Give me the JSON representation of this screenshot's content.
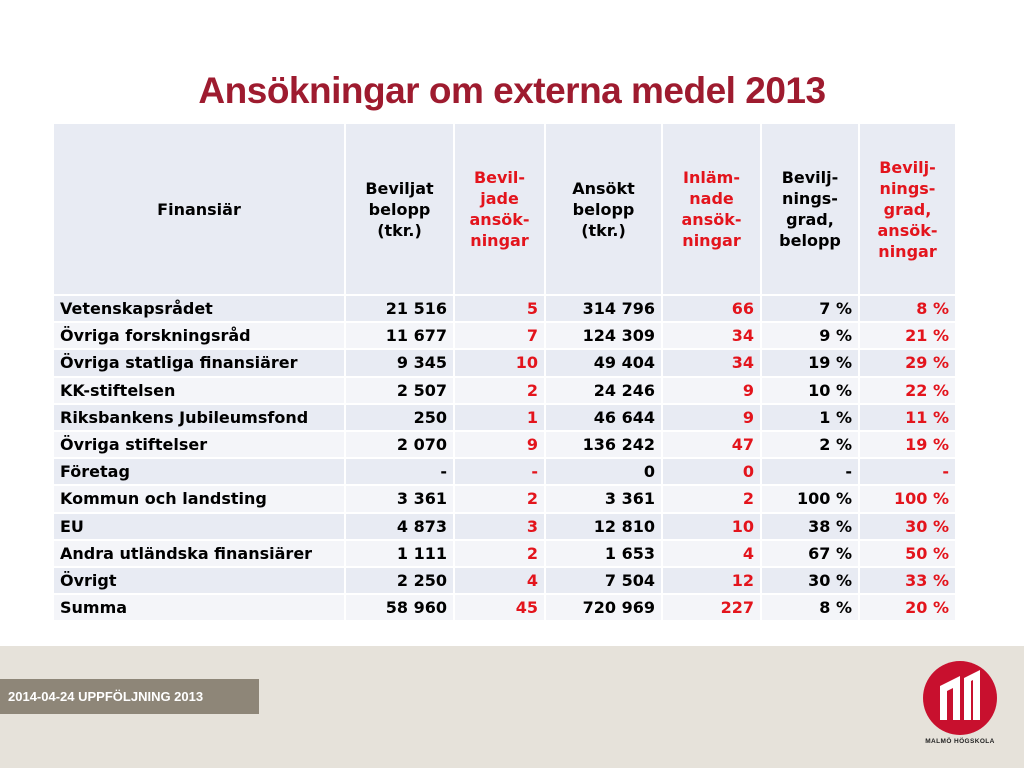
{
  "title": "Ansökningar om externa medel 2013",
  "header": {
    "c0": [
      "Finansiär"
    ],
    "c1": [
      "Beviljat",
      "belopp",
      "(tkr.)"
    ],
    "c2": [
      "Bevil-",
      "jade",
      "ansök-",
      "ningar"
    ],
    "c3": [
      "Ansökt",
      "belopp",
      "(tkr.)"
    ],
    "c4": [
      "Inläm-",
      "nade",
      "ansök-",
      "ningar"
    ],
    "c5": [
      "Bevilj-",
      "nings-",
      "grad,",
      "belopp"
    ],
    "c6": [
      "Bevilj-",
      "nings-",
      "grad,",
      "ansök-",
      "ningar"
    ]
  },
  "rows": [
    [
      "Vetenskapsrådet",
      "21 516",
      "5",
      "314 796",
      "66",
      "7 %",
      "8 %"
    ],
    [
      "Övriga forskningsråd",
      "11 677",
      "7",
      "124 309",
      "34",
      "9 %",
      "21 %"
    ],
    [
      "Övriga statliga finansiärer",
      "9 345",
      "10",
      "49 404",
      "34",
      "19 %",
      "29 %"
    ],
    [
      "KK-stiftelsen",
      "2 507",
      "2",
      "24 246",
      "9",
      "10 %",
      "22 %"
    ],
    [
      "Riksbankens Jubileumsfond",
      "250",
      "1",
      "46 644",
      "9",
      "1 %",
      "11 %"
    ],
    [
      "Övriga stiftelser",
      "2 070",
      "9",
      "136 242",
      "47",
      "2 %",
      "19 %"
    ],
    [
      "Företag",
      "-",
      "-",
      "0",
      "0",
      "-",
      "-"
    ],
    [
      "Kommun och landsting",
      "3 361",
      "2",
      "3 361",
      "2",
      "100 %",
      "100 %"
    ],
    [
      "EU",
      "4 873",
      "3",
      "12 810",
      "10",
      "38 %",
      "30 %"
    ],
    [
      "Andra utländska finansiärer",
      "1 111",
      "2",
      "1 653",
      "4",
      "67 %",
      "50 %"
    ],
    [
      "Övrigt",
      "2 250",
      "4",
      "7 504",
      "12",
      "30 %",
      "33 %"
    ],
    [
      "Summa",
      "58 960",
      "45",
      "720 969",
      "227",
      "8 %",
      "20 %"
    ]
  ],
  "footer": {
    "date_label": "2014-04-24  UPPFÖLJNING 2013"
  },
  "logo": {
    "text": "MALMÖ HÖGSKOLA",
    "color": "#c8102e"
  },
  "colors": {
    "title": "#9e1b2f",
    "highlight": "#e3141c",
    "header_bg": "#e8ebf3"
  }
}
